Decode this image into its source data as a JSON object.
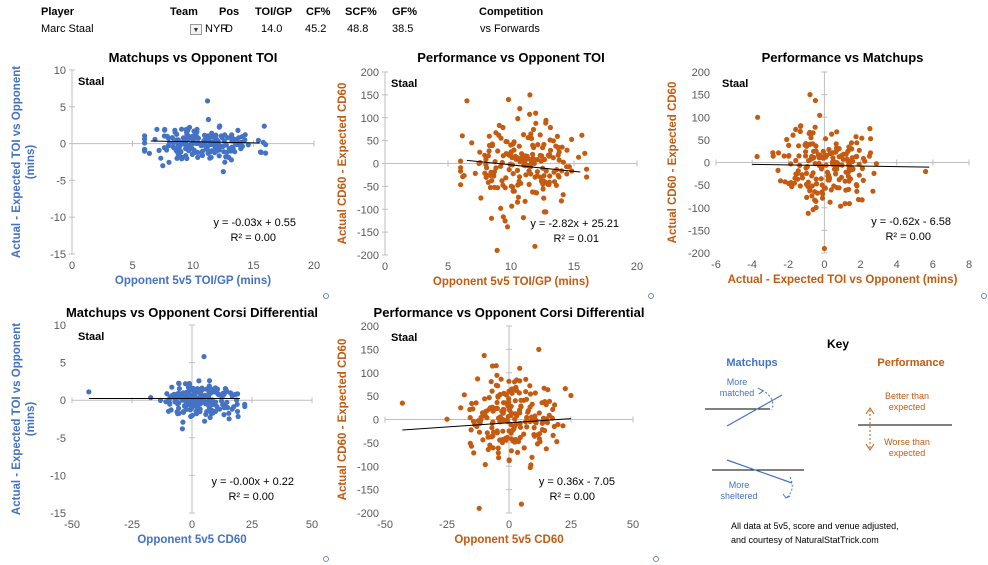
{
  "header": {
    "labels": {
      "player": "Player",
      "team": "Team",
      "pos": "Pos",
      "toi": "TOI/GP",
      "cf": "CF%",
      "scf": "SCF%",
      "gf": "GF%",
      "competition": "Competition"
    },
    "values": {
      "player": "Marc Staal",
      "team": "NYR",
      "pos": "D",
      "toi": "14.0",
      "cf": "45.2",
      "scf": "48.8",
      "gf": "38.5",
      "competition": "vs Forwards"
    }
  },
  "colors": {
    "blue": "#4472C4",
    "orange": "#C55A11",
    "axis": "#bfbfbf",
    "trend": "#000000"
  },
  "chart_data": [
    {
      "id": "c1",
      "type": "scatter",
      "title": "Matchups vs Opponent TOI",
      "xlabel": "Opponent 5v5 TOI/GP (mins)",
      "ylabel": "Actual - Expected TOI vs Opponent\n(mins)",
      "xlim": [
        0,
        20
      ],
      "ylim": [
        -15,
        10
      ],
      "xticks": [
        0,
        5,
        10,
        15,
        20
      ],
      "yticks": [
        -15,
        -10,
        -5,
        0,
        5,
        10
      ],
      "color": "blue",
      "label": "Staal",
      "equation": "y = -0.03x + 0.55",
      "r2": "R² = 0.00",
      "trend": {
        "slope": -0.03,
        "intercept": 0.55,
        "x0": 6.5,
        "x1": 15.5
      },
      "gen": {
        "xc": 10.8,
        "xs": 2.2,
        "xmin": 6,
        "xmax": 16,
        "yc": 0,
        "ys": 1.2,
        "ymin": -4,
        "ymax": 6,
        "n": 200,
        "seed": 11
      },
      "extra": [
        [
          11.2,
          5.8
        ],
        [
          7.5,
          -3
        ],
        [
          12.5,
          -3.8
        ]
      ],
      "keyLabel": "Staal"
    },
    {
      "id": "c2",
      "type": "scatter",
      "title": "Performance vs Opponent TOI",
      "xlabel": "Opponent 5v5 TOI/GP (mins)",
      "ylabel": "Actual CD60 - Expected CD60",
      "xlim": [
        0,
        20
      ],
      "ylim": [
        -200,
        200
      ],
      "xticks": [
        0,
        5,
        10,
        15,
        20
      ],
      "yticks": [
        -200,
        -150,
        -100,
        -50,
        0,
        50,
        100,
        150,
        200
      ],
      "color": "orange",
      "label": "Staal",
      "equation": "y = -2.82x + 25.21",
      "r2": "R² = 0.01",
      "trend": {
        "slope": -2.82,
        "intercept": 25.21,
        "x0": 6.5,
        "x1": 15.5
      },
      "gen": {
        "xc": 10.8,
        "xs": 2.2,
        "xmin": 6,
        "xmax": 16,
        "yc": -5,
        "ys": 45,
        "ymin": -150,
        "ymax": 120,
        "n": 200,
        "seed": 23
      },
      "extra": [
        [
          11.5,
          150
        ],
        [
          6.5,
          137
        ],
        [
          8.9,
          -190
        ],
        [
          11.9,
          -181
        ],
        [
          9.8,
          140
        ]
      ]
    },
    {
      "id": "c3",
      "type": "scatter",
      "title": "Performance vs Matchups",
      "xlabel": "Actual - Expected TOI vs Opponent (mins)",
      "ylabel": "Actual CD60 - Expected CD60",
      "xlim": [
        -6,
        8
      ],
      "ylim": [
        -200,
        200
      ],
      "xticks": [
        -6,
        -4,
        -2,
        0,
        2,
        4,
        6,
        8
      ],
      "yticks": [
        -200,
        -150,
        -100,
        -50,
        0,
        50,
        100,
        150,
        200
      ],
      "color": "orange",
      "label": "Staal",
      "equation": "y = -0.62x - 6.58",
      "r2": "R² = 0.00",
      "trend": {
        "slope": -0.62,
        "intercept": -6.58,
        "x0": -4,
        "x1": 5.8
      },
      "gen": {
        "xc": 0,
        "xs": 1.2,
        "xmin": -4,
        "xmax": 6,
        "yc": -5,
        "ys": 45,
        "ymin": -150,
        "ymax": 120,
        "n": 200,
        "seed": 37
      },
      "extra": [
        [
          -0.8,
          150
        ],
        [
          -0.5,
          137
        ],
        [
          0,
          -190
        ],
        [
          5.6,
          -20
        ],
        [
          -3.7,
          100
        ]
      ]
    },
    {
      "id": "c4",
      "type": "scatter",
      "title": "Matchups vs Opponent Corsi Differential",
      "xlabel": "Opponent 5v5 CD60",
      "ylabel": "Actual - Expected TOI vs Opponent\n(mins)",
      "xlim": [
        -50,
        50
      ],
      "ylim": [
        -15,
        10
      ],
      "xticks": [
        -50,
        -25,
        0,
        25,
        50
      ],
      "yticks": [
        -15,
        -10,
        -5,
        0,
        5,
        10
      ],
      "color": "blue",
      "label": "Staal",
      "equation": "y = -0.00x + 0.22",
      "r2": "R² = 0.00",
      "trend": {
        "slope": 0,
        "intercept": 0.22,
        "x0": -43,
        "x1": 20
      },
      "gen": {
        "xc": 3,
        "xs": 8,
        "xmin": -20,
        "xmax": 22,
        "yc": 0,
        "ys": 1.2,
        "ymin": -4,
        "ymax": 6,
        "n": 200,
        "seed": 51
      },
      "extra": [
        [
          -43,
          1.1
        ],
        [
          5,
          5.8
        ],
        [
          -4,
          -3.8
        ]
      ]
    },
    {
      "id": "c5",
      "type": "scatter",
      "title": "Performance vs Opponent Corsi Differential",
      "xlabel": "Opponent 5v5 CD60",
      "ylabel": "Actual CD60 - Expected CD60",
      "xlim": [
        -50,
        50
      ],
      "ylim": [
        -200,
        200
      ],
      "xticks": [
        -50,
        -25,
        0,
        25,
        50
      ],
      "yticks": [
        -200,
        -150,
        -100,
        -50,
        0,
        50,
        100,
        150,
        200
      ],
      "color": "orange",
      "label": "Staal",
      "equation": "y = 0.36x - 7.05",
      "r2": "R² = 0.00",
      "trend": {
        "slope": 0.36,
        "intercept": -7.05,
        "x0": -43,
        "x1": 25
      },
      "gen": {
        "xc": 0,
        "xs": 9,
        "xmin": -25,
        "xmax": 25,
        "yc": -5,
        "ys": 45,
        "ymin": -150,
        "ymax": 120,
        "n": 200,
        "seed": 67
      },
      "extra": [
        [
          -43,
          35
        ],
        [
          12,
          150
        ],
        [
          -10,
          137
        ],
        [
          -12,
          -190
        ],
        [
          5,
          -181
        ]
      ]
    }
  ],
  "key": {
    "title": "Key",
    "matchups": "Matchups",
    "performance": "Performance",
    "more_matched": [
      "More",
      "matched"
    ],
    "more_sheltered": [
      "More",
      "sheltered"
    ],
    "better": [
      "Better than",
      "expected"
    ],
    "worse": [
      "Worse than",
      "expected"
    ]
  },
  "footnote": [
    "All data at 5v5, score and venue adjusted,",
    "and courtesy of NaturalStatTrick.com"
  ]
}
